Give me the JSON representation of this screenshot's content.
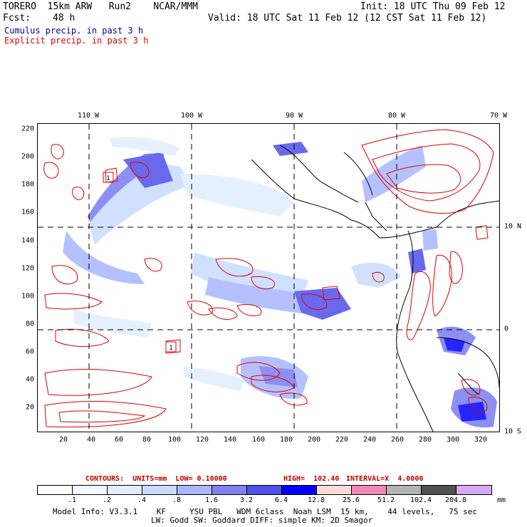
{
  "header": {
    "model": "TORERO  15km ARW   Run2    NCAR/MMM",
    "init": "Init: 18 UTC Thu 09 Feb 12",
    "fcst_label": "Fcst:",
    "fcst_value": "48 h",
    "valid": "Valid: 18 UTC Sat 11 Feb 12 (12 CST Sat 11 Feb 12)",
    "cumulus": "Cumulus precip. in past 3 h",
    "explicit": "Explicit precip. in past 3 h"
  },
  "colors": {
    "cumulus": "#00009b",
    "explicit": "#e00000",
    "land": "#000000"
  },
  "map": {
    "lon_labels": [
      "110 W",
      "100 W",
      "90 W",
      "80 W",
      "70 W"
    ],
    "lat_labels": [
      "10 N",
      "0",
      "10 S"
    ],
    "y_ticks": [
      "220",
      "200",
      "180",
      "160",
      "140",
      "120",
      "100",
      "80",
      "60",
      "40",
      "20"
    ],
    "x_ticks": [
      "20",
      "40",
      "60",
      "80",
      "100",
      "120",
      "140",
      "160",
      "180",
      "200",
      "220",
      "240",
      "260",
      "280",
      "300",
      "320"
    ],
    "box_labels": [
      "1",
      "1"
    ]
  },
  "contour_info": {
    "contours": "CONTOURS:  UNITS=mm  LOW= 0.10000",
    "high": "HIGH=  102.40",
    "interval": "INTERVAL=X  4.0000"
  },
  "colorbar": {
    "levels": [
      ".1",
      ".2",
      ".4",
      ".8",
      "1.6",
      "3.2",
      "6.4",
      "12.8",
      "25.6",
      "51.2",
      "102.4",
      "204.8"
    ],
    "colors": [
      "#ffffff",
      "#f2f8ff",
      "#e1eeff",
      "#c8dcff",
      "#a9b7ff",
      "#8080f0",
      "#5050ea",
      "#0000ff",
      "#ffd8d8",
      "#f08ab4",
      "#b4b4b4",
      "#505050",
      "#d8a8f8"
    ],
    "units": "mm"
  },
  "footer": {
    "line1": "Model Info: V3.3.1    KF     YSU PBL   WDM 6class  Noah LSM  15 km,    44 levels,   75 sec",
    "line2": "LW: Godd SW: Goddard DIFF: simple KM: 2D Smagor"
  }
}
